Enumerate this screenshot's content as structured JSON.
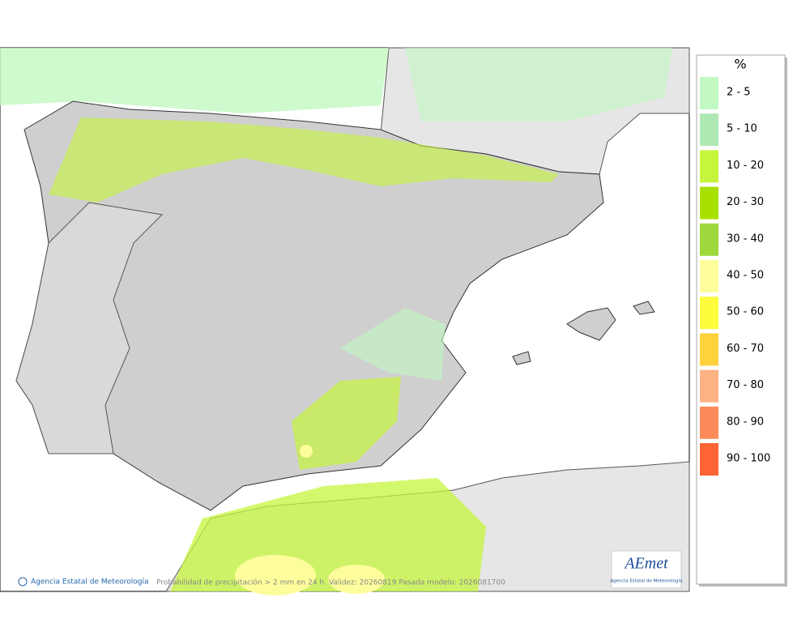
{
  "legend": {
    "title": "%",
    "items": [
      {
        "label": "2 - 5",
        "color": "#c2f9c2"
      },
      {
        "label": "5 - 10",
        "color": "#b0e8b4"
      },
      {
        "label": "10 - 20",
        "color": "#c6f53c"
      },
      {
        "label": "20 - 30",
        "color": "#a8e000"
      },
      {
        "label": "30 - 40",
        "color": "#9fd83c"
      },
      {
        "label": "40 - 50",
        "color": "#fdfd9c"
      },
      {
        "label": "50 - 60",
        "color": "#fdfd3e"
      },
      {
        "label": "60 - 70",
        "color": "#fdd23c"
      },
      {
        "label": "70 - 80",
        "color": "#fdb284"
      },
      {
        "label": "80 - 90",
        "color": "#fd8a5a"
      },
      {
        "label": "90 - 100",
        "color": "#fd6434"
      }
    ]
  },
  "footer": {
    "agency": "Agencia Estatal de Meteorología",
    "caption": "Probabilidad de precipitación > 2 mm en 24 h. Validez: 20260819 Pasada modelo: 2026081700"
  },
  "logo": {
    "name": "AEmet",
    "subtitle": "Agencia Estatal de Meteorología"
  }
}
